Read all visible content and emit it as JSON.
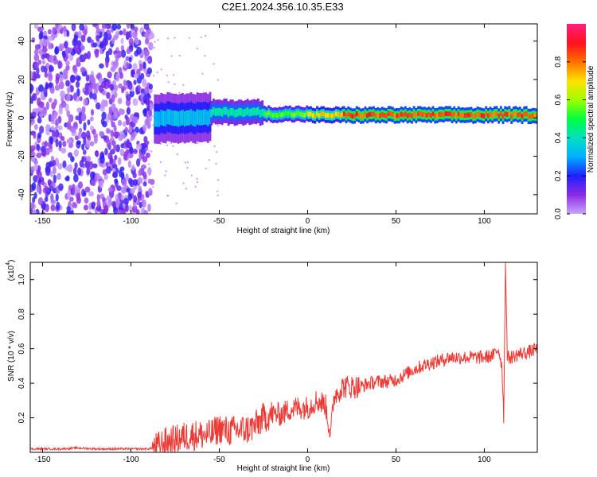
{
  "title": "C2E1.2024.356.10.35.E33",
  "colors": {
    "line": "#ee3a35",
    "axis": "#000000",
    "background": "#ffffff"
  },
  "chart_data": [
    {
      "type": "heatmap",
      "xlabel": "Height of straight line (km)",
      "ylabel": "Frequency (Hz)",
      "xlim": [
        -157,
        130
      ],
      "ylim": [
        -50,
        49
      ],
      "x_ticks": [
        "-150",
        "-100",
        "-50",
        "0",
        "50",
        "100"
      ],
      "x_tick_values": [
        -150,
        -100,
        -50,
        0,
        50,
        100
      ],
      "y_ticks": [
        "40",
        "20",
        "0",
        "-20",
        "-40"
      ],
      "y_tick_values": [
        40,
        20,
        0,
        -20,
        -40
      ],
      "colorbar": {
        "label": "Normalized spectral amplitude",
        "range": [
          0,
          1
        ],
        "ticks": [
          "0.0",
          "0.2",
          "0.4",
          "0.6",
          "0.8"
        ],
        "tick_values": [
          0.0,
          0.2,
          0.4,
          0.6,
          0.8
        ],
        "colormap": "rainbow (purple-blue-cyan-green-yellow-red-magenta)"
      },
      "noise_region_x": [
        -157,
        -88
      ],
      "dominant_frequency_hz": 1.5,
      "band_segments": [
        {
          "x": [
            -87,
            -55
          ],
          "freq_center": 0,
          "freq_halfwidth": 8,
          "amplitude": 0.35
        },
        {
          "x": [
            -55,
            -25
          ],
          "freq_center": 3,
          "freq_halfwidth": 4,
          "amplitude": 0.45
        },
        {
          "x": [
            -25,
            0
          ],
          "freq_center": 2,
          "freq_halfwidth": 2.5,
          "amplitude": 0.6
        },
        {
          "x": [
            0,
            20
          ],
          "freq_center": 1.5,
          "freq_halfwidth": 2.5,
          "amplitude": 0.75
        },
        {
          "x": [
            20,
            130
          ],
          "freq_center": 1.5,
          "freq_halfwidth": 2.5,
          "amplitude": 0.9
        }
      ]
    },
    {
      "type": "line",
      "xlabel": "Height of straight line (km)",
      "ylabel": "SNR (10 * v/v)",
      "y_multiplier_label": "(x10",
      "y_multiplier_exp": "4",
      "y_multiplier_close": ")",
      "xlim": [
        -157,
        130
      ],
      "ylim": [
        0,
        1.1
      ],
      "x_ticks": [
        "-150",
        "-100",
        "-50",
        "0",
        "50",
        "100"
      ],
      "x_tick_values": [
        -150,
        -100,
        -50,
        0,
        50,
        100
      ],
      "y_ticks": [
        "0.2",
        "0.4",
        "0.6",
        "0.8",
        "1.0"
      ],
      "y_tick_values": [
        0.2,
        0.4,
        0.6,
        0.8,
        1.0
      ],
      "series": [
        {
          "color": "#ee3a35",
          "x": [
            -157,
            -150,
            -140,
            -130,
            -120,
            -110,
            -100,
            -90,
            -85,
            -80,
            -75,
            -70,
            -65,
            -60,
            -55,
            -50,
            -45,
            -40,
            -35,
            -30,
            -25,
            -20,
            -15,
            -10,
            -5,
            0,
            5,
            10,
            13,
            15,
            20,
            25,
            30,
            35,
            40,
            45,
            50,
            55,
            60,
            65,
            70,
            75,
            80,
            85,
            90,
            95,
            100,
            105,
            108,
            110,
            111,
            112,
            113,
            115,
            120,
            125,
            130
          ],
          "y": [
            0.02,
            0.02,
            0.02,
            0.025,
            0.02,
            0.02,
            0.02,
            0.02,
            0.03,
            0.06,
            0.07,
            0.09,
            0.1,
            0.1,
            0.1,
            0.14,
            0.12,
            0.13,
            0.13,
            0.15,
            0.2,
            0.22,
            0.22,
            0.25,
            0.26,
            0.26,
            0.3,
            0.28,
            0.1,
            0.33,
            0.38,
            0.38,
            0.38,
            0.4,
            0.41,
            0.41,
            0.42,
            0.45,
            0.48,
            0.5,
            0.52,
            0.53,
            0.55,
            0.55,
            0.55,
            0.55,
            0.55,
            0.56,
            0.6,
            0.5,
            0.2,
            1.1,
            0.55,
            0.55,
            0.57,
            0.58,
            0.6
          ],
          "noise_envelope": [
            {
              "x": [
                -157,
                -88
              ],
              "amplitude": 0.006
            },
            {
              "x": [
                -88,
                -20
              ],
              "amplitude": 0.09
            },
            {
              "x": [
                -20,
                30
              ],
              "amplitude": 0.07
            },
            {
              "x": [
                30,
                130
              ],
              "amplitude": 0.04
            }
          ]
        }
      ]
    }
  ]
}
